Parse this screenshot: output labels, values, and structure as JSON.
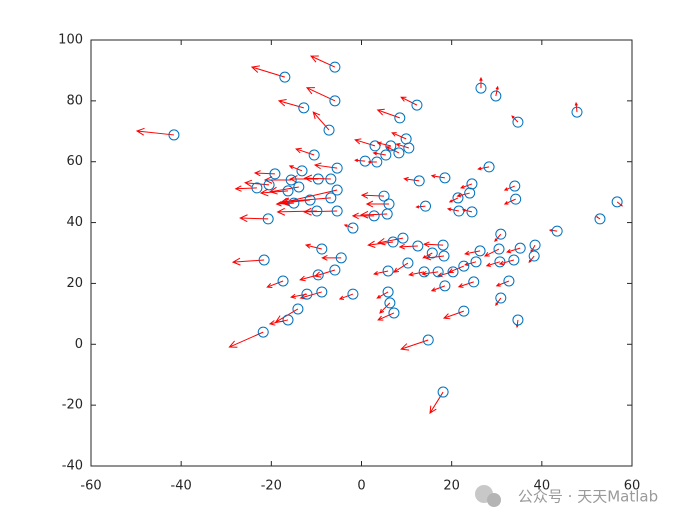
{
  "chart_data": {
    "type": "quiver",
    "x": [
      -41.6,
      -17,
      -5.9,
      -5.9,
      -12.8,
      -7.2,
      12.3,
      8.5,
      26.5,
      29.8,
      34.7,
      47.8,
      9.9,
      3.0,
      6.5,
      10.5,
      5.4,
      8.3,
      0.8,
      3.4,
      -10.5,
      -5.4,
      -13.2,
      -19.2,
      -9.6,
      -6.8,
      -15.6,
      -20.5,
      -13.9,
      -16.3,
      -23.2,
      -5.4,
      -6.8,
      -11.4,
      -15,
      -5.4,
      -9.9,
      -20.7,
      -1.9,
      5,
      6.1,
      5.7,
      2.8,
      12.8,
      18.5,
      28.3,
      24.5,
      21.4,
      24,
      21.6,
      24.5,
      14.2,
      34,
      34.2,
      30.9,
      43.4,
      52.9,
      56.7,
      38.5,
      38.3,
      9.2,
      7,
      18.1,
      12.5,
      -8.8,
      -4.5,
      18.3,
      15.7,
      26.3,
      30.5,
      35.2,
      30.7,
      33.8,
      25.4,
      22.7,
      20.3,
      17,
      13.9,
      10.3,
      5.9,
      -21.6,
      -5.9,
      -9.6,
      -17.4,
      18.5,
      24.9,
      32.7,
      -8.8,
      -12.1,
      -1.9,
      5.9,
      6.3,
      7.2,
      30.9,
      22.7,
      -14.1,
      -16.3,
      34.7,
      -21.8,
      14.8,
      18.1
    ],
    "y": [
      68.8,
      87.8,
      91.1,
      80,
      77.7,
      70.4,
      78.6,
      74.4,
      84.2,
      81.6,
      73,
      76.3,
      67.5,
      65.2,
      65.2,
      64.5,
      62.2,
      62.9,
      60.2,
      59.9,
      62.2,
      57.9,
      57,
      56,
      54.3,
      54.3,
      54,
      52.4,
      51.7,
      50.4,
      51.4,
      50.7,
      48.1,
      47.4,
      46.4,
      43.8,
      43.8,
      41.2,
      38.2,
      48.7,
      46.1,
      42.8,
      42.2,
      53.7,
      54.7,
      58.3,
      52.7,
      48.1,
      49.7,
      43.8,
      43.5,
      45.4,
      52,
      47.7,
      36.2,
      37.2,
      41.2,
      46.8,
      32.6,
      29,
      34.9,
      33.6,
      32.6,
      32.3,
      31.3,
      28.4,
      29,
      30,
      30.7,
      31.3,
      31.6,
      27.1,
      27.7,
      27.1,
      25.7,
      23.8,
      23.8,
      23.8,
      26.7,
      24.1,
      27.7,
      24.4,
      22.8,
      20.8,
      19.2,
      20.5,
      20.8,
      17.2,
      16.5,
      16.5,
      17.2,
      13.6,
      10.3,
      15.2,
      10.9,
      11.6,
      8,
      8,
      4,
      1.4,
      -15.7
    ],
    "u": [
      -8.2,
      -7.3,
      -5.3,
      -6.2,
      -5.5,
      -3.5,
      -3.5,
      -4.9,
      0,
      0.4,
      -1.3,
      -0.2,
      -3.1,
      -4.4,
      -2.9,
      -2.7,
      -2.7,
      -2.7,
      -2.2,
      -1.8,
      -4,
      -4.9,
      -2.7,
      -4.4,
      -6.2,
      -5.8,
      -5.8,
      -5.3,
      -6.4,
      -6,
      -4.7,
      -12.6,
      -10.9,
      -6.2,
      -3.8,
      -7.3,
      -8.7,
      -6.2,
      -1.8,
      -4.9,
      -4.9,
      -5.8,
      -4.7,
      -3.3,
      -2.9,
      -2.4,
      -2.4,
      -1.8,
      -2.7,
      -2.4,
      -2,
      -2,
      -2.2,
      -2.4,
      -1.3,
      -1.6,
      -0.7,
      1.1,
      -0.9,
      -1.1,
      -5.5,
      -5.5,
      -4.2,
      -4,
      -3.5,
      -4.2,
      -4,
      -2,
      -3.3,
      -3.1,
      -2.9,
      -2.9,
      -3.1,
      -2.4,
      -3.3,
      -3.3,
      -3.5,
      -3.3,
      -3.1,
      -3.1,
      -6.9,
      -4.4,
      -4,
      -3.5,
      -2.9,
      -3.3,
      -2.7,
      -4.7,
      -3.5,
      -2.9,
      -2.4,
      -2.2,
      -3.5,
      -1.1,
      -4.4,
      -4.9,
      -4,
      -0.2,
      -7.5,
      -6,
      -2.9
    ],
    "v": [
      1.3,
      3.3,
      3.6,
      4.3,
      2.3,
      5.9,
      2.6,
      2.6,
      3.3,
      3,
      2,
      3,
      2,
      2,
      1,
      1.3,
      0.7,
      2,
      0.3,
      0,
      2,
      1,
      1.6,
      0.3,
      0,
      0.3,
      0,
      0.7,
      -1.6,
      -0.7,
      -0.3,
      -4.3,
      -1.3,
      -1,
      -0.3,
      -0.3,
      -0.3,
      0.3,
      1,
      0.3,
      0,
      -0.3,
      0,
      0.7,
      0.7,
      -0.7,
      -1.3,
      -1.3,
      -1,
      0.7,
      0.7,
      -0.3,
      -1.3,
      -1.6,
      -2.3,
      0.3,
      0.7,
      -1.3,
      -2.3,
      -2,
      -1.6,
      -1,
      0.3,
      -0.3,
      1.3,
      0,
      -0.7,
      -1.6,
      -1,
      -2.3,
      -1.3,
      -1.3,
      -1.3,
      -1,
      -2,
      -1.3,
      -0.7,
      -1,
      -3,
      -1,
      -0.7,
      -2,
      -1.6,
      -2,
      -1.6,
      -1.6,
      -1.6,
      -2,
      -1,
      -1.6,
      -2,
      -3.3,
      -2.3,
      -2.3,
      -2.3,
      -4.3,
      -1.3,
      -2.3,
      -4.9,
      -3,
      -6.9
    ],
    "marker_color": "#0072bd",
    "arrow_color": "#ff0000",
    "xlim": [
      -60,
      60
    ],
    "xticks": [
      -60,
      -40,
      -20,
      0,
      20,
      40,
      60
    ],
    "ylim": [
      -40,
      100
    ],
    "yticks": [
      -40,
      -20,
      0,
      20,
      40,
      60,
      80,
      100
    ],
    "watermark": "公众号 · 天天Matlab"
  }
}
